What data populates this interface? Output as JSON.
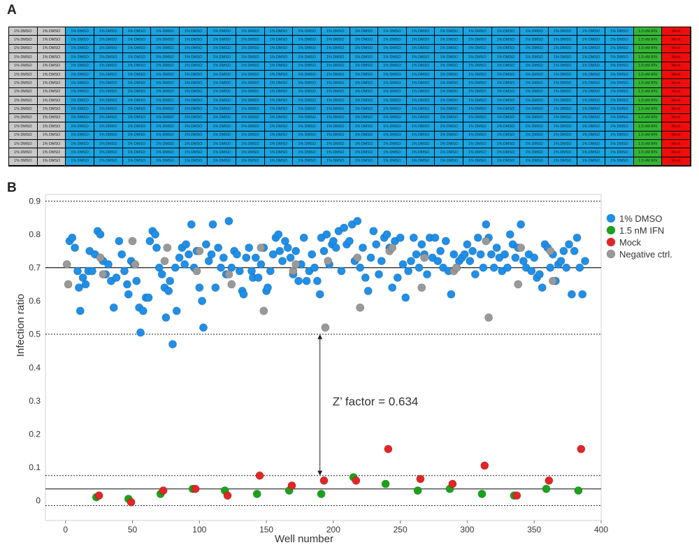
{
  "panels": {
    "a_label": "A",
    "b_label": "B"
  },
  "plate": {
    "rows": 16,
    "columns": [
      {
        "label": "1% DMSO",
        "kind": "neg"
      },
      {
        "label": "1% DMSO",
        "kind": "neg"
      },
      {
        "label": "1% DMSO",
        "kind": "dmso"
      },
      {
        "label": "1% DMSO",
        "kind": "dmso"
      },
      {
        "label": "1% DMSO",
        "kind": "dmso"
      },
      {
        "label": "1% DMSO",
        "kind": "dmso"
      },
      {
        "label": "1% DMSO",
        "kind": "dmso"
      },
      {
        "label": "1% DMSO",
        "kind": "dmso"
      },
      {
        "label": "1% DMSO",
        "kind": "dmso"
      },
      {
        "label": "1% DMSO",
        "kind": "dmso"
      },
      {
        "label": "1% DMSO",
        "kind": "dmso"
      },
      {
        "label": "1% DMSO",
        "kind": "dmso"
      },
      {
        "label": "1% DMSO",
        "kind": "dmso"
      },
      {
        "label": "1% DMSO",
        "kind": "dmso"
      },
      {
        "label": "1% DMSO",
        "kind": "dmso"
      },
      {
        "label": "1% DMSO",
        "kind": "dmso"
      },
      {
        "label": "1% DMSO",
        "kind": "dmso"
      },
      {
        "label": "1% DMSO",
        "kind": "dmso"
      },
      {
        "label": "1% DMSO",
        "kind": "dmso"
      },
      {
        "label": "1% DMSO",
        "kind": "dmso"
      },
      {
        "label": "1% DMSO",
        "kind": "dmso"
      },
      {
        "label": "1% DMSO",
        "kind": "dmso"
      },
      {
        "label": "1.5 nM IFN",
        "kind": "ifn"
      },
      {
        "label": "Mock",
        "kind": "mock"
      }
    ],
    "colors": {
      "neg": "#c8c8c8",
      "dmso": "#1ba3e0",
      "ifn": "#35b535",
      "mock": "#f00d0d"
    }
  },
  "chart_data": {
    "type": "scatter",
    "xlabel": "Well number",
    "ylabel": "Infection ratio",
    "xlim": [
      -15,
      400
    ],
    "ylim": [
      -0.06,
      0.92
    ],
    "xticks": [
      0,
      50,
      100,
      150,
      200,
      250,
      300,
      350,
      400
    ],
    "yticks": [
      0,
      0.1,
      0.2,
      0.3,
      0.4,
      0.5,
      0.6,
      0.7,
      0.8,
      0.9
    ],
    "ytick_labels": [
      "0",
      "0.1",
      "0.2",
      "0.3",
      "0.4",
      "0.5",
      "0.6",
      "0.7",
      "0.8",
      "0.9"
    ],
    "hlines": [
      {
        "y": 0.9,
        "style": "dotted"
      },
      {
        "y": 0.7,
        "style": "solid"
      },
      {
        "y": 0.5,
        "style": "dotted"
      },
      {
        "y": 0.075,
        "style": "dotted"
      },
      {
        "y": 0.035,
        "style": "solid"
      },
      {
        "y": -0.015,
        "style": "dotted"
      }
    ],
    "annotation": {
      "text": "Z’ factor = 0.634",
      "x": 190,
      "y_from": 0.075,
      "y_to": 0.5
    },
    "series": [
      {
        "name": "1% DMSO",
        "color": "#1f8fe8",
        "points": [
          [
            3,
            0.78
          ],
          [
            5,
            0.79
          ],
          [
            7,
            0.76
          ],
          [
            9,
            0.69
          ],
          [
            10,
            0.64
          ],
          [
            11,
            0.57
          ],
          [
            13,
            0.67
          ],
          [
            15,
            0.65
          ],
          [
            17,
            0.69
          ],
          [
            18,
            0.75
          ],
          [
            20,
            0.69
          ],
          [
            22,
            0.74
          ],
          [
            24,
            0.81
          ],
          [
            26,
            0.8
          ],
          [
            28,
            0.72
          ],
          [
            30,
            0.68
          ],
          [
            32,
            0.71
          ],
          [
            34,
            0.66
          ],
          [
            36,
            0.58
          ],
          [
            38,
            0.67
          ],
          [
            40,
            0.78
          ],
          [
            42,
            0.74
          ],
          [
            44,
            0.69
          ],
          [
            46,
            0.65
          ],
          [
            47,
            0.62
          ],
          [
            49,
            0.72
          ],
          [
            51,
            0.71
          ],
          [
            53,
            0.66
          ],
          [
            55,
            0.58
          ],
          [
            56,
            0.505
          ],
          [
            58,
            0.57
          ],
          [
            60,
            0.61
          ],
          [
            62,
            0.61
          ],
          [
            63,
            0.78
          ],
          [
            65,
            0.81
          ],
          [
            67,
            0.8
          ],
          [
            68,
            0.76
          ],
          [
            70,
            0.7
          ],
          [
            72,
            0.68
          ],
          [
            74,
            0.64
          ],
          [
            75,
            0.55
          ],
          [
            77,
            0.63
          ],
          [
            78,
            0.66
          ],
          [
            80,
            0.47
          ],
          [
            82,
            0.7
          ],
          [
            83,
            0.57
          ],
          [
            85,
            0.73
          ],
          [
            87,
            0.76
          ],
          [
            89,
            0.71
          ],
          [
            90,
            0.77
          ],
          [
            92,
            0.74
          ],
          [
            94,
            0.83
          ],
          [
            96,
            0.7
          ],
          [
            98,
            0.75
          ],
          [
            100,
            0.64
          ],
          [
            102,
            0.6
          ],
          [
            103,
            0.52
          ],
          [
            105,
            0.77
          ],
          [
            107,
            0.72
          ],
          [
            109,
            0.74
          ],
          [
            110,
            0.83
          ],
          [
            112,
            0.64
          ],
          [
            114,
            0.76
          ],
          [
            116,
            0.7
          ],
          [
            118,
            0.73
          ],
          [
            120,
            0.68
          ],
          [
            122,
            0.84
          ],
          [
            124,
            0.7
          ],
          [
            126,
            0.75
          ],
          [
            128,
            0.74
          ],
          [
            130,
            0.69
          ],
          [
            132,
            0.63
          ],
          [
            133,
            0.62
          ],
          [
            135,
            0.73
          ],
          [
            137,
            0.76
          ],
          [
            139,
            0.69
          ],
          [
            140,
            0.67
          ],
          [
            142,
            0.73
          ],
          [
            144,
            0.67
          ],
          [
            146,
            0.71
          ],
          [
            148,
            0.76
          ],
          [
            150,
            0.63
          ],
          [
            151,
            0.64
          ],
          [
            153,
            0.69
          ],
          [
            155,
            0.74
          ],
          [
            157,
            0.79
          ],
          [
            159,
            0.8
          ],
          [
            160,
            0.75
          ],
          [
            162,
            0.72
          ],
          [
            164,
            0.78
          ],
          [
            166,
            0.76
          ],
          [
            168,
            0.73
          ],
          [
            170,
            0.68
          ],
          [
            172,
            0.75
          ],
          [
            174,
            0.66
          ],
          [
            176,
            0.71
          ],
          [
            178,
            0.79
          ],
          [
            180,
            0.66
          ],
          [
            182,
            0.69
          ],
          [
            184,
            0.74
          ],
          [
            186,
            0.7
          ],
          [
            188,
            0.66
          ],
          [
            190,
            0.62
          ],
          [
            191,
            0.79
          ],
          [
            193,
            0.75
          ],
          [
            195,
            0.8
          ],
          [
            197,
            0.71
          ],
          [
            199,
            0.77
          ],
          [
            200,
            0.78
          ],
          [
            202,
            0.76
          ],
          [
            204,
            0.81
          ],
          [
            206,
            0.69
          ],
          [
            208,
            0.82
          ],
          [
            210,
            0.77
          ],
          [
            212,
            0.78
          ],
          [
            214,
            0.83
          ],
          [
            216,
            0.72
          ],
          [
            218,
            0.84
          ],
          [
            220,
            0.7
          ],
          [
            222,
            0.76
          ],
          [
            224,
            0.67
          ],
          [
            226,
            0.63
          ],
          [
            228,
            0.73
          ],
          [
            230,
            0.81
          ],
          [
            232,
            0.77
          ],
          [
            234,
            0.68
          ],
          [
            236,
            0.72
          ],
          [
            238,
            0.79
          ],
          [
            240,
            0.8
          ],
          [
            242,
            0.76
          ],
          [
            244,
            0.64
          ],
          [
            246,
            0.78
          ],
          [
            248,
            0.67
          ],
          [
            250,
            0.79
          ],
          [
            252,
            0.71
          ],
          [
            254,
            0.61
          ],
          [
            256,
            0.69
          ],
          [
            258,
            0.72
          ],
          [
            260,
            0.79
          ],
          [
            262,
            0.74
          ],
          [
            264,
            0.7
          ],
          [
            266,
            0.77
          ],
          [
            268,
            0.74
          ],
          [
            270,
            0.68
          ],
          [
            272,
            0.79
          ],
          [
            274,
            0.73
          ],
          [
            276,
            0.79
          ],
          [
            278,
            0.72
          ],
          [
            280,
            0.75
          ],
          [
            282,
            0.7
          ],
          [
            284,
            0.78
          ],
          [
            286,
            0.69
          ],
          [
            288,
            0.62
          ],
          [
            290,
            0.74
          ],
          [
            292,
            0.7
          ],
          [
            294,
            0.72
          ],
          [
            296,
            0.73
          ],
          [
            298,
            0.74
          ],
          [
            300,
            0.77
          ],
          [
            302,
            0.72
          ],
          [
            304,
            0.75
          ],
          [
            306,
            0.68
          ],
          [
            308,
            0.79
          ],
          [
            310,
            0.74
          ],
          [
            312,
            0.7
          ],
          [
            314,
            0.83
          ],
          [
            316,
            0.79
          ],
          [
            318,
            0.74
          ],
          [
            320,
            0.7
          ],
          [
            322,
            0.76
          ],
          [
            324,
            0.73
          ],
          [
            326,
            0.69
          ],
          [
            328,
            0.74
          ],
          [
            330,
            0.7
          ],
          [
            332,
            0.8
          ],
          [
            334,
            0.77
          ],
          [
            336,
            0.73
          ],
          [
            338,
            0.76
          ],
          [
            340,
            0.83
          ],
          [
            342,
            0.72
          ],
          [
            344,
            0.7
          ],
          [
            346,
            0.74
          ],
          [
            348,
            0.69
          ],
          [
            350,
            0.73
          ],
          [
            352,
            0.67
          ],
          [
            354,
            0.68
          ],
          [
            356,
            0.64
          ],
          [
            358,
            0.77
          ],
          [
            360,
            0.76
          ],
          [
            362,
            0.7
          ],
          [
            364,
            0.74
          ],
          [
            366,
            0.66
          ],
          [
            368,
            0.71
          ],
          [
            370,
            0.72
          ],
          [
            372,
            0.75
          ],
          [
            374,
            0.7
          ],
          [
            376,
            0.77
          ],
          [
            378,
            0.62
          ],
          [
            380,
            0.75
          ],
          [
            382,
            0.79
          ],
          [
            384,
            0.7
          ],
          [
            386,
            0.62
          ],
          [
            388,
            0.72
          ]
        ]
      },
      {
        "name": "1.5 nM IFN",
        "color": "#1aa31a",
        "points": [
          [
            23,
            0.01
          ],
          [
            47,
            0.005
          ],
          [
            71,
            0.02
          ],
          [
            95,
            0.035
          ],
          [
            119,
            0.03
          ],
          [
            143,
            0.02
          ],
          [
            167,
            0.03
          ],
          [
            191,
            0.02
          ],
          [
            215,
            0.07
          ],
          [
            239,
            0.05
          ],
          [
            263,
            0.03
          ],
          [
            287,
            0.035
          ],
          [
            311,
            0.02
          ],
          [
            335,
            0.015
          ],
          [
            359,
            0.035
          ],
          [
            383,
            0.03
          ]
        ]
      },
      {
        "name": "Mock",
        "color": "#e02626",
        "points": [
          [
            25,
            0.015
          ],
          [
            49,
            -0.005
          ],
          [
            73,
            0.03
          ],
          [
            97,
            0.035
          ],
          [
            121,
            0.015
          ],
          [
            145,
            0.075
          ],
          [
            169,
            0.045
          ],
          [
            193,
            0.06
          ],
          [
            217,
            0.06
          ],
          [
            241,
            0.155
          ],
          [
            265,
            0.065
          ],
          [
            289,
            0.05
          ],
          [
            313,
            0.105
          ],
          [
            337,
            0.015
          ],
          [
            361,
            0.06
          ],
          [
            385,
            0.155
          ]
        ]
      },
      {
        "name": "Negative ctrl.",
        "color": "#999999",
        "points": [
          [
            1,
            0.71
          ],
          [
            2,
            0.65
          ],
          [
            26,
            0.73
          ],
          [
            28,
            0.68
          ],
          [
            50,
            0.78
          ],
          [
            52,
            0.71
          ],
          [
            74,
            0.72
          ],
          [
            76,
            0.76
          ],
          [
            98,
            0.69
          ],
          [
            100,
            0.75
          ],
          [
            122,
            0.68
          ],
          [
            124,
            0.65
          ],
          [
            146,
            0.76
          ],
          [
            148,
            0.57
          ],
          [
            170,
            0.69
          ],
          [
            172,
            0.71
          ],
          [
            194,
            0.52
          ],
          [
            196,
            0.72
          ],
          [
            218,
            0.73
          ],
          [
            220,
            0.58
          ],
          [
            242,
            0.75
          ],
          [
            244,
            0.76
          ],
          [
            266,
            0.64
          ],
          [
            268,
            0.73
          ],
          [
            290,
            0.69
          ],
          [
            292,
            0.7
          ],
          [
            314,
            0.78
          ],
          [
            316,
            0.55
          ],
          [
            338,
            0.65
          ],
          [
            340,
            0.76
          ],
          [
            362,
            0.75
          ],
          [
            364,
            0.66
          ]
        ]
      }
    ]
  }
}
